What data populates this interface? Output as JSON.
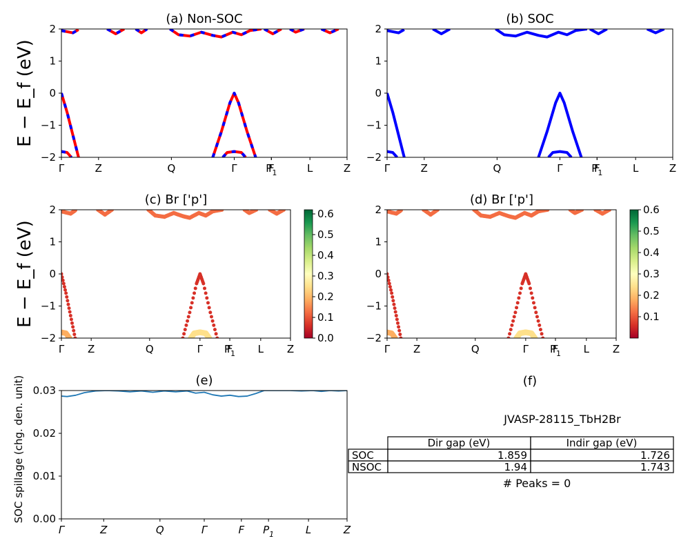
{
  "colors": {
    "nonsoc_up": "#ff0000",
    "nonsoc_dn": "#0000ff",
    "soc": "#0000ff",
    "spillage": "#1f77b4"
  },
  "chart_data": [
    {
      "panel": "a",
      "type": "line",
      "title": "(a) Non-SOC",
      "ylabel": "E − E_f (eV)",
      "ylim": [
        -2,
        2
      ],
      "yticks": [
        "2",
        "1",
        "0",
        "−1",
        "−2"
      ],
      "kpoint_labels": [
        "Γ",
        "Z",
        "Q",
        "Γ",
        "F",
        "P1",
        "L",
        "Z"
      ],
      "series": [
        {
          "points": [
            [
              0.0,
              0.0
            ],
            [
              0.02,
              -0.6
            ],
            [
              0.04,
              -1.3
            ],
            [
              0.06,
              -2.0
            ]
          ]
        },
        {
          "points": [
            [
              0.0,
              -1.82
            ],
            [
              0.02,
              -1.85
            ],
            [
              0.035,
              -2.0
            ]
          ]
        },
        {
          "points": [
            [
              0.53,
              -2.0
            ],
            [
              0.56,
              -1.2
            ],
            [
              0.59,
              -0.3
            ],
            [
              0.605,
              0.0
            ],
            [
              0.62,
              -0.3
            ],
            [
              0.65,
              -1.2
            ],
            [
              0.68,
              -2.0
            ]
          ]
        },
        {
          "points": [
            [
              0.565,
              -2.0
            ],
            [
              0.58,
              -1.85
            ],
            [
              0.605,
              -1.82
            ],
            [
              0.63,
              -1.85
            ],
            [
              0.645,
              -2.0
            ]
          ]
        },
        {
          "points": [
            [
              0.0,
              1.95
            ],
            [
              0.04,
              1.88
            ],
            [
              0.06,
              1.98
            ]
          ]
        },
        {
          "points": [
            [
              0.16,
              2.0
            ],
            [
              0.19,
              1.85
            ],
            [
              0.22,
              2.0
            ]
          ]
        },
        {
          "points": [
            [
              0.26,
              2.0
            ],
            [
              0.28,
              1.88
            ],
            [
              0.3,
              2.0
            ]
          ]
        },
        {
          "points": [
            [
              0.38,
              2.0
            ],
            [
              0.41,
              1.82
            ],
            [
              0.45,
              1.78
            ],
            [
              0.49,
              1.9
            ],
            [
              0.53,
              1.8
            ],
            [
              0.56,
              1.75
            ],
            [
              0.6,
              1.9
            ],
            [
              0.63,
              1.82
            ],
            [
              0.66,
              1.95
            ],
            [
              0.7,
              2.0
            ]
          ]
        },
        {
          "points": [
            [
              0.71,
              2.0
            ],
            [
              0.74,
              1.85
            ],
            [
              0.77,
              2.0
            ]
          ]
        },
        {
          "points": [
            [
              0.8,
              2.0
            ],
            [
              0.82,
              1.9
            ],
            [
              0.85,
              2.0
            ]
          ]
        },
        {
          "points": [
            [
              0.91,
              2.0
            ],
            [
              0.94,
              1.88
            ],
            [
              0.97,
              2.0
            ]
          ]
        }
      ]
    },
    {
      "panel": "b",
      "type": "line",
      "title": "(b) SOC",
      "ylim": [
        -2,
        2
      ],
      "yticks": [
        "2",
        "1",
        "0",
        "−1",
        "−2"
      ],
      "kpoint_labels": [
        "Γ",
        "Z",
        "Q",
        "Γ",
        "F",
        "P1",
        "L",
        "Z"
      ],
      "series": [
        {
          "points": [
            [
              0.0,
              0.0
            ],
            [
              0.02,
              -0.6
            ],
            [
              0.04,
              -1.3
            ],
            [
              0.06,
              -2.0
            ]
          ]
        },
        {
          "points": [
            [
              0.0,
              -1.82
            ],
            [
              0.02,
              -1.85
            ],
            [
              0.035,
              -2.0
            ]
          ]
        },
        {
          "points": [
            [
              0.53,
              -2.0
            ],
            [
              0.56,
              -1.2
            ],
            [
              0.59,
              -0.3
            ],
            [
              0.605,
              0.0
            ],
            [
              0.62,
              -0.3
            ],
            [
              0.65,
              -1.2
            ],
            [
              0.68,
              -2.0
            ]
          ]
        },
        {
          "points": [
            [
              0.565,
              -2.0
            ],
            [
              0.58,
              -1.85
            ],
            [
              0.605,
              -1.82
            ],
            [
              0.63,
              -1.85
            ],
            [
              0.645,
              -2.0
            ]
          ]
        },
        {
          "points": [
            [
              0.0,
              1.95
            ],
            [
              0.04,
              1.88
            ],
            [
              0.06,
              1.98
            ]
          ]
        },
        {
          "points": [
            [
              0.16,
              2.0
            ],
            [
              0.19,
              1.85
            ],
            [
              0.22,
              2.0
            ]
          ]
        },
        {
          "points": [
            [
              0.38,
              2.0
            ],
            [
              0.41,
              1.82
            ],
            [
              0.45,
              1.78
            ],
            [
              0.49,
              1.9
            ],
            [
              0.53,
              1.8
            ],
            [
              0.56,
              1.75
            ],
            [
              0.6,
              1.9
            ],
            [
              0.63,
              1.82
            ],
            [
              0.66,
              1.95
            ],
            [
              0.7,
              2.0
            ]
          ]
        },
        {
          "points": [
            [
              0.71,
              2.0
            ],
            [
              0.74,
              1.85
            ],
            [
              0.77,
              2.0
            ]
          ]
        },
        {
          "points": [
            [
              0.91,
              2.0
            ],
            [
              0.94,
              1.88
            ],
            [
              0.97,
              2.0
            ]
          ]
        }
      ]
    },
    {
      "panel": "c",
      "type": "scatter",
      "title": "(c)  Br ['p']",
      "ylabel": "E − E_f (eV)",
      "ylim": [
        -2,
        2
      ],
      "yticks": [
        "2",
        "1",
        "0",
        "−1",
        "−2"
      ],
      "kpoint_labels": [
        "Γ",
        "Z",
        "Q",
        "Γ",
        "F",
        "P1",
        "L",
        "Z"
      ],
      "colorbar_ticks": [
        "0.6",
        "0.5",
        "0.4",
        "0.3",
        "0.2",
        "0.1",
        "0.0"
      ],
      "colorbar_range": [
        0,
        0.62
      ],
      "series": [
        {
          "weight": 0.05,
          "points": [
            [
              0.0,
              0.0
            ],
            [
              0.02,
              -0.6
            ],
            [
              0.04,
              -1.3
            ],
            [
              0.06,
              -2.0
            ]
          ]
        },
        {
          "weight": 0.2,
          "points": [
            [
              0.0,
              -1.82
            ],
            [
              0.02,
              -1.85
            ],
            [
              0.035,
              -2.0
            ]
          ]
        },
        {
          "weight": 0.05,
          "points": [
            [
              0.53,
              -2.0
            ],
            [
              0.56,
              -1.2
            ],
            [
              0.59,
              -0.3
            ],
            [
              0.605,
              0.0
            ],
            [
              0.62,
              -0.3
            ],
            [
              0.65,
              -1.2
            ],
            [
              0.68,
              -2.0
            ]
          ]
        },
        {
          "weight": 0.22,
          "points": [
            [
              0.565,
              -2.0
            ],
            [
              0.58,
              -1.85
            ],
            [
              0.605,
              -1.82
            ],
            [
              0.63,
              -1.85
            ],
            [
              0.645,
              -2.0
            ]
          ]
        },
        {
          "weight": 0.1,
          "points": [
            [
              0.0,
              1.95
            ],
            [
              0.04,
              1.88
            ],
            [
              0.06,
              1.98
            ]
          ]
        },
        {
          "weight": 0.1,
          "points": [
            [
              0.38,
              2.0
            ],
            [
              0.41,
              1.82
            ],
            [
              0.45,
              1.78
            ],
            [
              0.49,
              1.9
            ],
            [
              0.53,
              1.8
            ],
            [
              0.56,
              1.75
            ],
            [
              0.6,
              1.9
            ],
            [
              0.63,
              1.82
            ],
            [
              0.66,
              1.95
            ],
            [
              0.7,
              2.0
            ]
          ]
        },
        {
          "weight": 0.1,
          "points": [
            [
              0.16,
              2.0
            ],
            [
              0.19,
              1.85
            ],
            [
              0.22,
              2.0
            ]
          ]
        },
        {
          "weight": 0.1,
          "points": [
            [
              0.8,
              2.0
            ],
            [
              0.82,
              1.9
            ],
            [
              0.85,
              2.0
            ]
          ]
        },
        {
          "weight": 0.1,
          "points": [
            [
              0.91,
              2.0
            ],
            [
              0.94,
              1.88
            ],
            [
              0.97,
              2.0
            ]
          ]
        }
      ]
    },
    {
      "panel": "d",
      "type": "scatter",
      "title": "(d) Br ['p']",
      "ylim": [
        -2,
        2
      ],
      "yticks": [
        "2",
        "1",
        "0",
        "−1",
        "−2"
      ],
      "kpoint_labels": [
        "Γ",
        "Z",
        "Q",
        "Γ",
        "F",
        "P1",
        "L",
        "Z"
      ],
      "colorbar_ticks": [
        "0.6",
        "0.5",
        "0.4",
        "0.3",
        "0.2",
        "0.1"
      ],
      "colorbar_range": [
        0,
        0.6
      ],
      "series": [
        {
          "weight": 0.05,
          "points": [
            [
              0.0,
              0.0
            ],
            [
              0.02,
              -0.6
            ],
            [
              0.04,
              -1.3
            ],
            [
              0.06,
              -2.0
            ]
          ]
        },
        {
          "weight": 0.2,
          "points": [
            [
              0.0,
              -1.82
            ],
            [
              0.02,
              -1.85
            ],
            [
              0.035,
              -2.0
            ]
          ]
        },
        {
          "weight": 0.05,
          "points": [
            [
              0.53,
              -2.0
            ],
            [
              0.56,
              -1.2
            ],
            [
              0.59,
              -0.3
            ],
            [
              0.605,
              0.0
            ],
            [
              0.62,
              -0.3
            ],
            [
              0.65,
              -1.2
            ],
            [
              0.68,
              -2.0
            ]
          ]
        },
        {
          "weight": 0.22,
          "points": [
            [
              0.565,
              -2.0
            ],
            [
              0.58,
              -1.85
            ],
            [
              0.605,
              -1.82
            ],
            [
              0.63,
              -1.85
            ],
            [
              0.645,
              -2.0
            ]
          ]
        },
        {
          "weight": 0.1,
          "points": [
            [
              0.0,
              1.95
            ],
            [
              0.04,
              1.88
            ],
            [
              0.06,
              1.98
            ]
          ]
        },
        {
          "weight": 0.1,
          "points": [
            [
              0.38,
              2.0
            ],
            [
              0.41,
              1.82
            ],
            [
              0.45,
              1.78
            ],
            [
              0.49,
              1.9
            ],
            [
              0.53,
              1.8
            ],
            [
              0.56,
              1.75
            ],
            [
              0.6,
              1.9
            ],
            [
              0.63,
              1.82
            ],
            [
              0.66,
              1.95
            ],
            [
              0.7,
              2.0
            ]
          ]
        },
        {
          "weight": 0.1,
          "points": [
            [
              0.16,
              2.0
            ],
            [
              0.19,
              1.85
            ],
            [
              0.22,
              2.0
            ]
          ]
        },
        {
          "weight": 0.1,
          "points": [
            [
              0.8,
              2.0
            ],
            [
              0.82,
              1.9
            ],
            [
              0.85,
              2.0
            ]
          ]
        },
        {
          "weight": 0.1,
          "points": [
            [
              0.91,
              2.0
            ],
            [
              0.94,
              1.88
            ],
            [
              0.97,
              2.0
            ]
          ]
        }
      ]
    },
    {
      "panel": "e",
      "type": "line",
      "title": "(e)",
      "ylabel": "SOC spillage (chg. den. unit)",
      "ylim": [
        0,
        0.03
      ],
      "yticks": [
        "0.03",
        "0.02",
        "0.01",
        "0.00"
      ],
      "kpoint_labels": [
        "Γ",
        "Z",
        "Q",
        "Γ",
        "F",
        "P1",
        "L",
        "Z"
      ],
      "series": [
        {
          "points": [
            [
              0.0,
              0.0287
            ],
            [
              0.02,
              0.0286
            ],
            [
              0.05,
              0.0289
            ],
            [
              0.08,
              0.0295
            ],
            [
              0.12,
              0.0299
            ],
            [
              0.16,
              0.03
            ],
            [
              0.2,
              0.0299
            ],
            [
              0.24,
              0.0297
            ],
            [
              0.28,
              0.0299
            ],
            [
              0.32,
              0.0296
            ],
            [
              0.36,
              0.0299
            ],
            [
              0.4,
              0.0297
            ],
            [
              0.44,
              0.0299
            ],
            [
              0.47,
              0.0294
            ],
            [
              0.5,
              0.0296
            ],
            [
              0.53,
              0.029
            ],
            [
              0.56,
              0.0287
            ],
            [
              0.59,
              0.0289
            ],
            [
              0.62,
              0.0286
            ],
            [
              0.65,
              0.0287
            ],
            [
              0.68,
              0.0293
            ],
            [
              0.71,
              0.03
            ],
            [
              0.74,
              0.03
            ],
            [
              0.77,
              0.03
            ],
            [
              0.8,
              0.03
            ],
            [
              0.84,
              0.0299
            ],
            [
              0.88,
              0.03
            ],
            [
              0.91,
              0.0298
            ],
            [
              0.94,
              0.03
            ],
            [
              0.97,
              0.0299
            ],
            [
              1.0,
              0.03
            ]
          ]
        }
      ]
    }
  ],
  "info": {
    "title": "(f)",
    "material": "JVASP-28115_TbH2Br",
    "table": {
      "headers": [
        "Dir gap (eV)",
        "Indir gap (eV)"
      ],
      "rows": [
        {
          "label": "SOC",
          "dir": "1.859",
          "indir": "1.726"
        },
        {
          "label": "NSOC",
          "dir": "1.94",
          "indir": "1.743"
        }
      ]
    },
    "peaks": "# Peaks = 0"
  }
}
